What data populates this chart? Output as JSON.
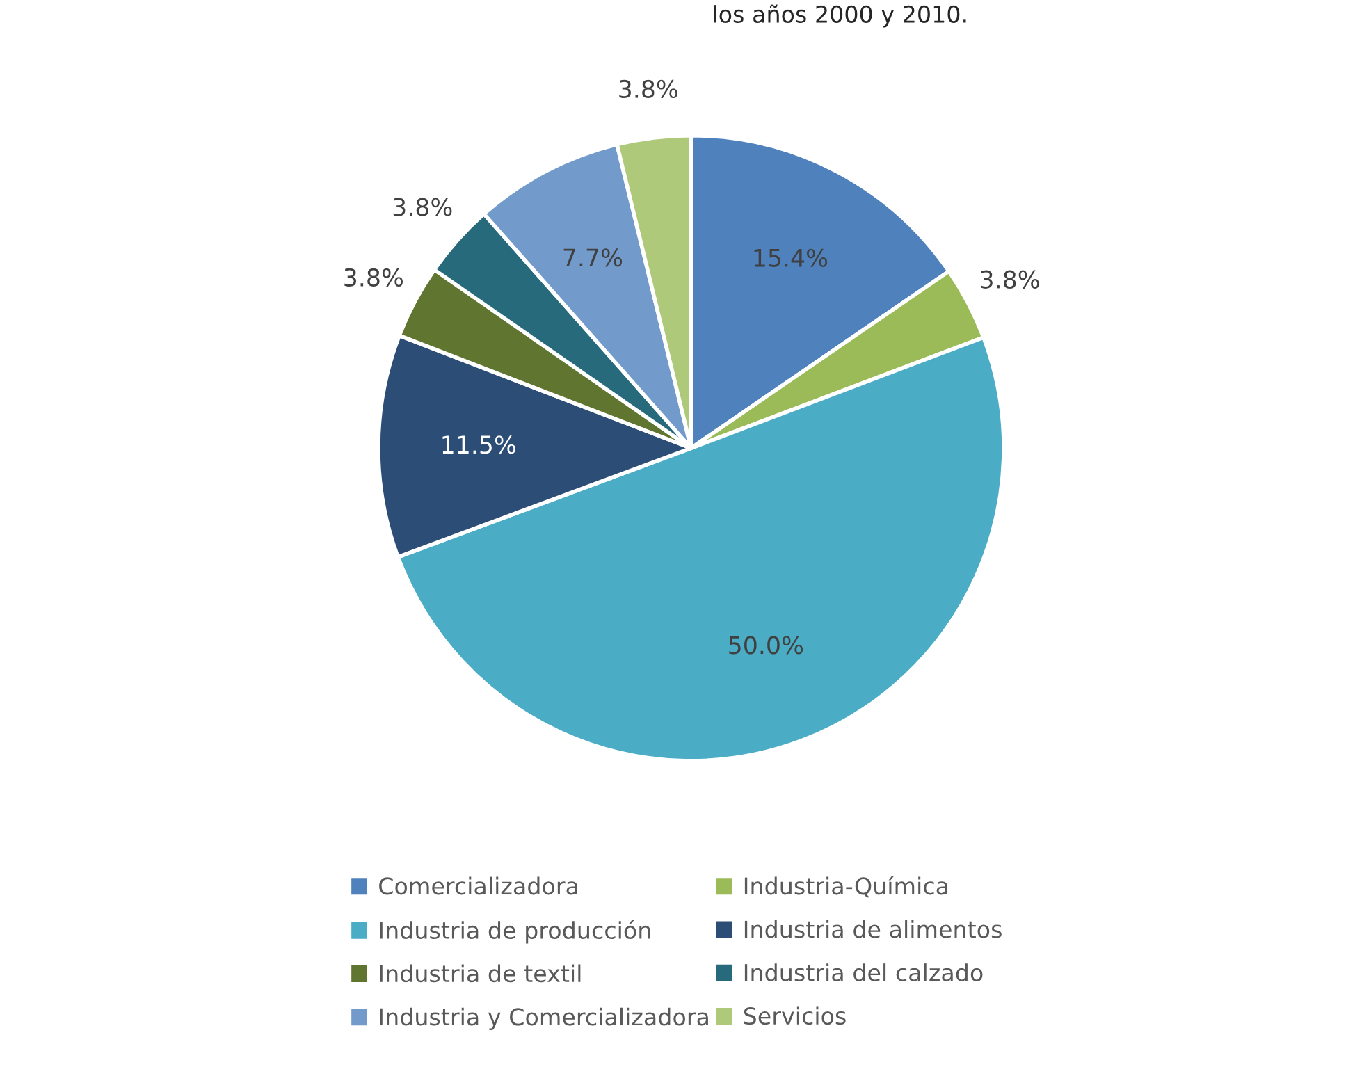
{
  "chart_data": {
    "type": "pie",
    "title": "los años 2000 y 2010.",
    "categories": [
      "Comercializadora",
      "Industria-Química",
      "Industria de producción",
      "Industria de alimentos",
      "Industria de textil",
      "Industria del calzado",
      "Industria y Comercializadora",
      "Servicios"
    ],
    "values": [
      15.4,
      3.8,
      50.0,
      11.5,
      3.8,
      3.8,
      7.7,
      3.8
    ],
    "colors": [
      "#4f81bd",
      "#9bbb59",
      "#4bacc6",
      "#2c4d75",
      "#5f7530",
      "#276a7c",
      "#729aca",
      "#afc97a"
    ],
    "value_labels": [
      "15.4%",
      "3.8%",
      "50.0%",
      "11.5%",
      "3.8%",
      "3.8%",
      "7.7%",
      "3.8%"
    ],
    "legend": "bottom"
  }
}
